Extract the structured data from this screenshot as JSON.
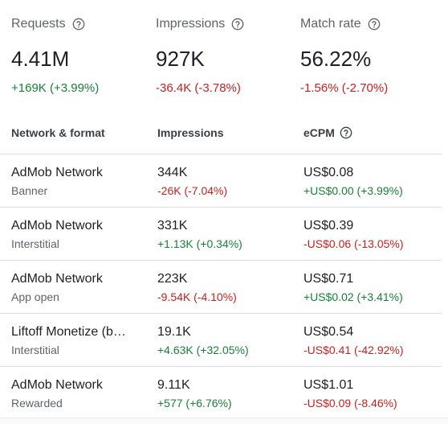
{
  "metrics": [
    {
      "label": "Requests",
      "value": "4.41M",
      "delta": "+169K (+3.99%)",
      "delta_trend": "pos"
    },
    {
      "label": "Impressions",
      "value": "927K",
      "delta": "-36.4K (-3.78%)",
      "delta_trend": "neg"
    },
    {
      "label": "Match rate",
      "value": "56.22%",
      "delta": "-1.56% (-2.70%)",
      "delta_trend": "neg"
    }
  ],
  "table": {
    "headers": {
      "network": "Network & format",
      "impressions": "Impressions",
      "ecpm": "eCPM"
    },
    "rows": [
      {
        "network": "AdMob Network",
        "format": "Banner",
        "impressions": "344K",
        "impressions_delta": "-26K (-7.04%)",
        "impressions_trend": "neg",
        "ecpm": "US$0.08",
        "ecpm_delta": "+US$0.00 (+3.99%)",
        "ecpm_trend": "pos"
      },
      {
        "network": "AdMob Network",
        "format": "Interstitial",
        "impressions": "331K",
        "impressions_delta": "+1.13K (+0.34%)",
        "impressions_trend": "pos",
        "ecpm": "US$0.39",
        "ecpm_delta": "-US$0.06 (-13.05%)",
        "ecpm_trend": "neg"
      },
      {
        "network": "AdMob Network",
        "format": "App open",
        "impressions": "223K",
        "impressions_delta": "-9.54K (-4.10%)",
        "impressions_trend": "neg",
        "ecpm": "US$0.71",
        "ecpm_delta": "+US$0.02 (+3.41%)",
        "ecpm_trend": "pos"
      },
      {
        "network": "Liftoff Monetize (b…",
        "format": "Interstitial",
        "impressions": "19.1K",
        "impressions_delta": "+4.63K (+32.05%)",
        "impressions_trend": "pos",
        "ecpm": "US$0.54",
        "ecpm_delta": "-US$0.41 (-42.92%)",
        "ecpm_trend": "neg"
      },
      {
        "network": "AdMob Network",
        "format": "Rewarded",
        "impressions": "9.11K",
        "impressions_delta": "+577 (+6.76%)",
        "impressions_trend": "pos",
        "ecpm": "US$1.01",
        "ecpm_delta": "-US$0.09 (-8.46%)",
        "ecpm_trend": "neg"
      }
    ]
  },
  "icons": {
    "help": "help-circle-icon"
  },
  "colors": {
    "positive": "#188038",
    "negative": "#c5221f",
    "label": "#5f6368",
    "divider": "#dadce0"
  }
}
